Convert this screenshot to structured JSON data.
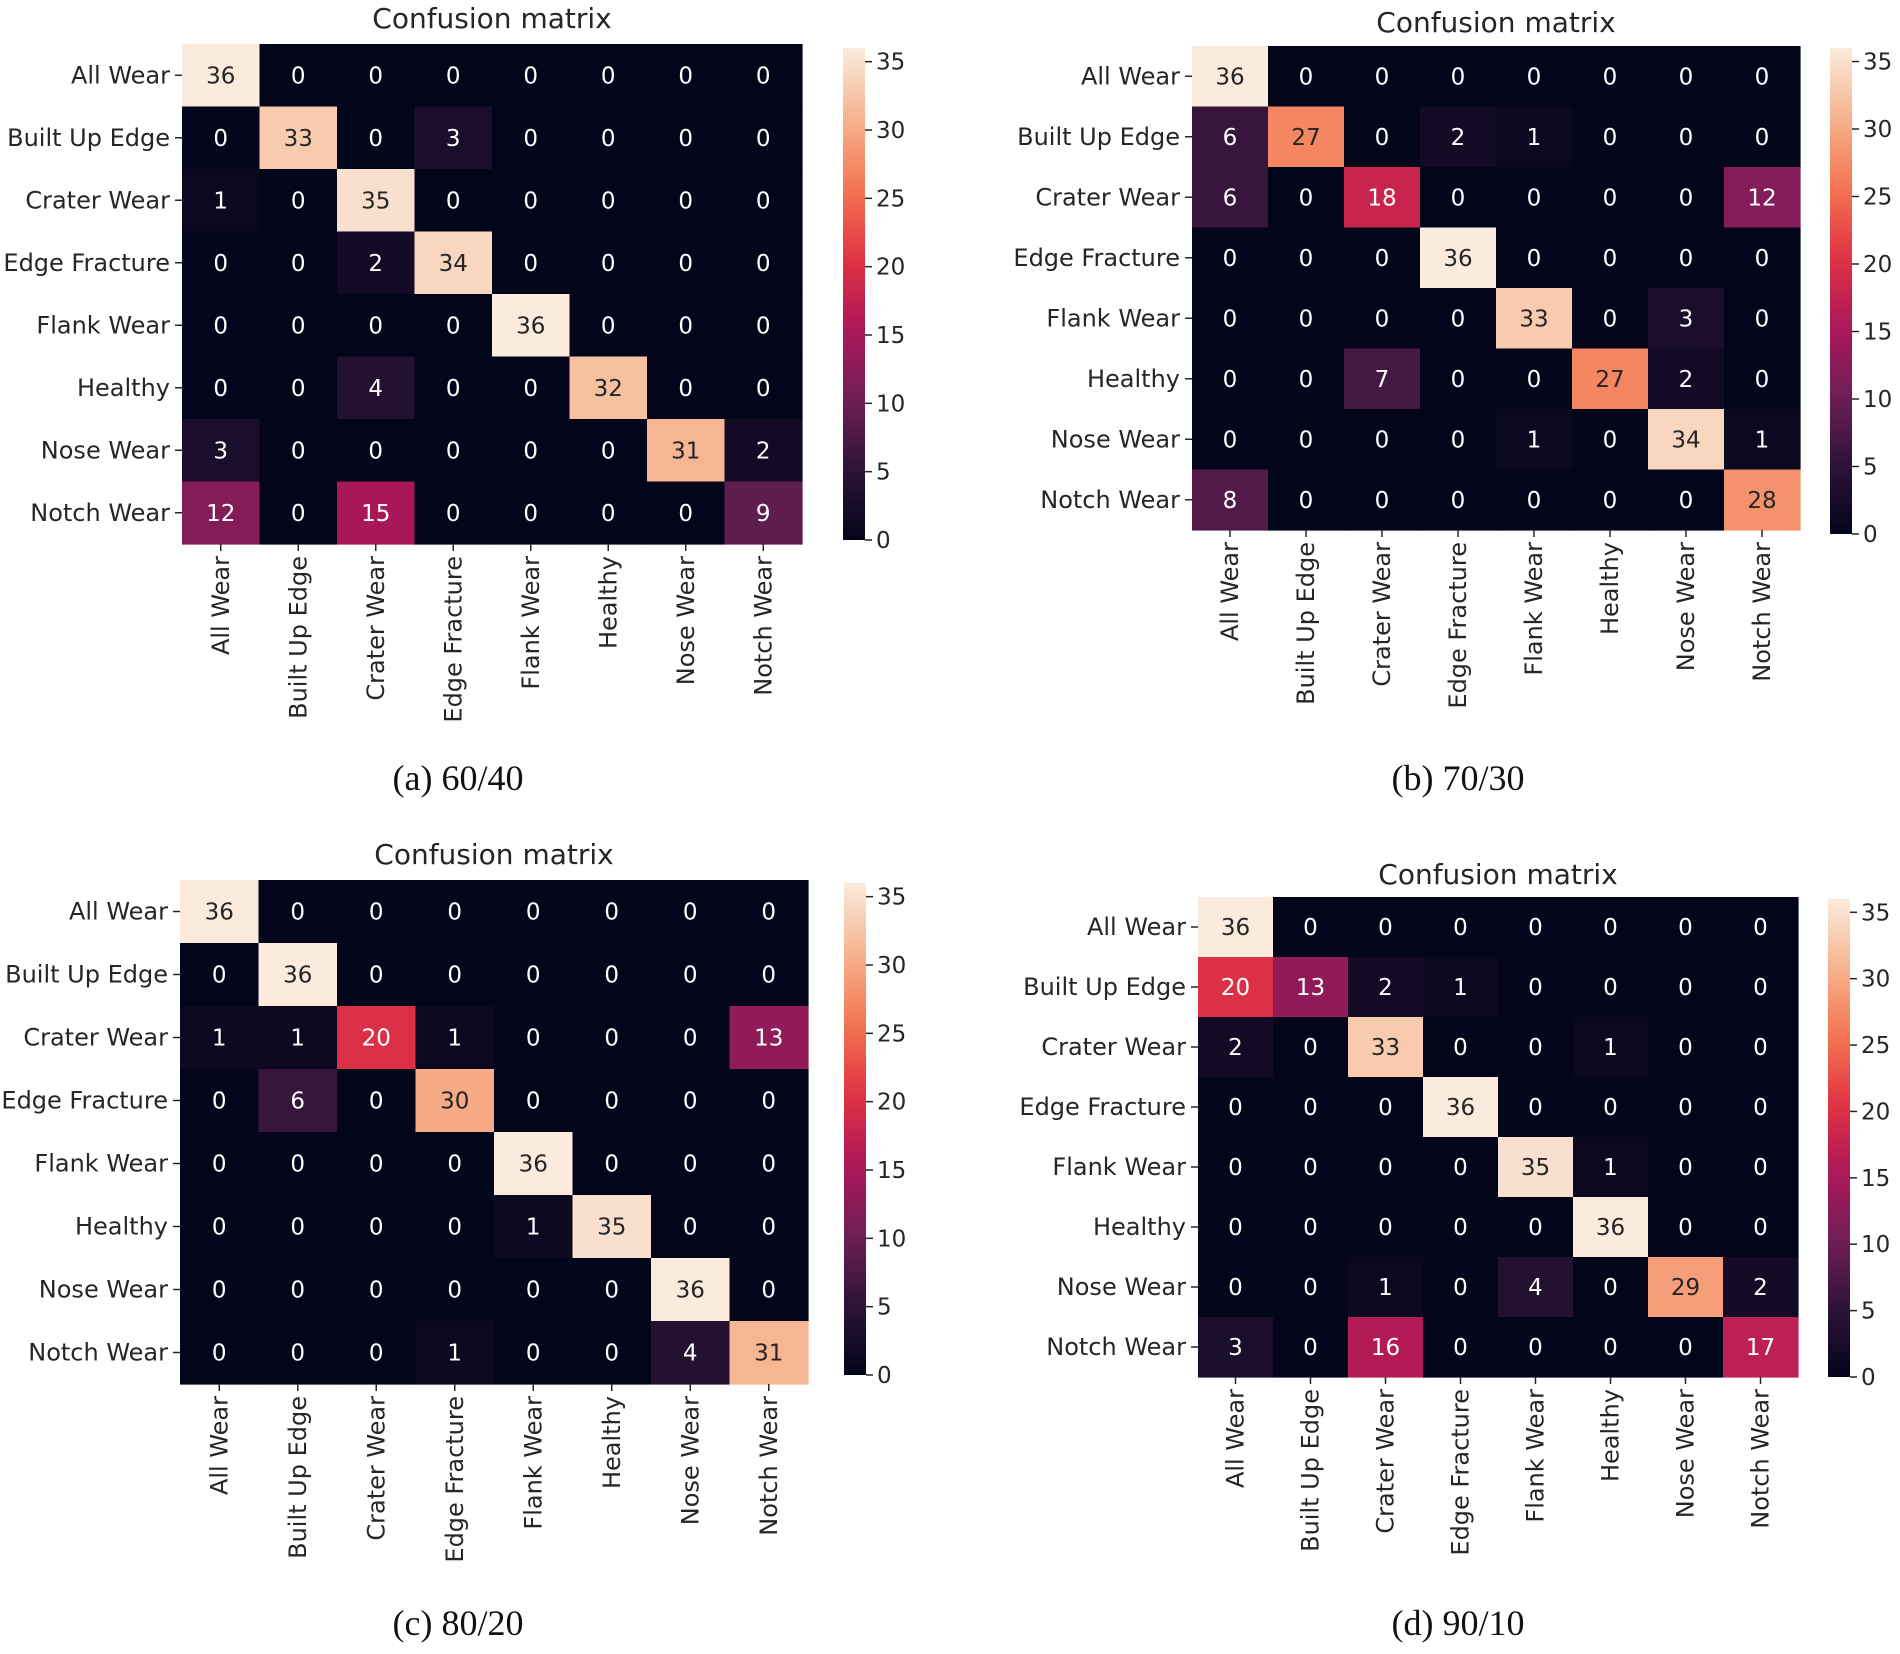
{
  "colormap": [
    "#03051a",
    "#2d1338",
    "#701f57",
    "#ad1759",
    "#e13342",
    "#f37651",
    "#f6b48f",
    "#faebdd"
  ],
  "chart_data": [
    {
      "type": "heatmap",
      "title": "Confusion matrix",
      "caption": "(a) 60/40",
      "row_labels": [
        "All Wear",
        "Built Up Edge",
        "Crater Wear",
        "Edge Fracture",
        "Flank Wear",
        "Healthy",
        "Nose Wear",
        "Notch Wear"
      ],
      "col_labels": [
        "All Wear",
        "Built Up Edge",
        "Crater Wear",
        "Edge Fracture",
        "Flank Wear",
        "Healthy",
        "Nose Wear",
        "Notch Wear"
      ],
      "values": [
        [
          36,
          0,
          0,
          0,
          0,
          0,
          0,
          0
        ],
        [
          0,
          33,
          0,
          3,
          0,
          0,
          0,
          0
        ],
        [
          1,
          0,
          35,
          0,
          0,
          0,
          0,
          0
        ],
        [
          0,
          0,
          2,
          34,
          0,
          0,
          0,
          0
        ],
        [
          0,
          0,
          0,
          0,
          36,
          0,
          0,
          0
        ],
        [
          0,
          0,
          4,
          0,
          0,
          32,
          0,
          0
        ],
        [
          3,
          0,
          0,
          0,
          0,
          0,
          31,
          2
        ],
        [
          12,
          0,
          15,
          0,
          0,
          0,
          0,
          9
        ]
      ],
      "vmin": 0,
      "vmax": 36,
      "colorbar_ticks": [
        0,
        5,
        10,
        15,
        20,
        25,
        30,
        35
      ],
      "colorbar_tick_labels": [
        "0",
        "5",
        "10",
        "15",
        "20",
        "25",
        "30",
        "35"
      ]
    },
    {
      "type": "heatmap",
      "title": "Confusion matrix",
      "caption": "(b) 70/30",
      "row_labels": [
        "All Wear",
        "Built Up Edge",
        "Crater Wear",
        "Edge Fracture",
        "Flank Wear",
        "Healthy",
        "Nose Wear",
        "Notch Wear"
      ],
      "col_labels": [
        "All Wear",
        "Built Up Edge",
        "Crater Wear",
        "Edge Fracture",
        "Flank Wear",
        "Healthy",
        "Nose Wear",
        "Notch Wear"
      ],
      "values": [
        [
          36,
          0,
          0,
          0,
          0,
          0,
          0,
          0
        ],
        [
          6,
          27,
          0,
          2,
          1,
          0,
          0,
          0
        ],
        [
          6,
          0,
          18,
          0,
          0,
          0,
          0,
          12
        ],
        [
          0,
          0,
          0,
          36,
          0,
          0,
          0,
          0
        ],
        [
          0,
          0,
          0,
          0,
          33,
          0,
          3,
          0
        ],
        [
          0,
          0,
          7,
          0,
          0,
          27,
          2,
          0
        ],
        [
          0,
          0,
          0,
          0,
          1,
          0,
          34,
          1
        ],
        [
          8,
          0,
          0,
          0,
          0,
          0,
          0,
          28
        ]
      ],
      "vmin": 0,
      "vmax": 36,
      "colorbar_ticks": [
        0,
        5,
        10,
        15,
        20,
        25,
        30,
        35
      ],
      "colorbar_tick_labels": [
        "0",
        "5",
        "10",
        "15",
        "20",
        "25",
        "30",
        "35"
      ]
    },
    {
      "type": "heatmap",
      "title": "Confusion matrix",
      "caption": "(c) 80/20",
      "row_labels": [
        "All Wear",
        "Built Up Edge",
        "Crater Wear",
        "Edge Fracture",
        "Flank Wear",
        "Healthy",
        "Nose Wear",
        "Notch Wear"
      ],
      "col_labels": [
        "All Wear",
        "Built Up Edge",
        "Crater Wear",
        "Edge Fracture",
        "Flank Wear",
        "Healthy",
        "Nose Wear",
        "Notch Wear"
      ],
      "values": [
        [
          36,
          0,
          0,
          0,
          0,
          0,
          0,
          0
        ],
        [
          0,
          36,
          0,
          0,
          0,
          0,
          0,
          0
        ],
        [
          1,
          1,
          20,
          1,
          0,
          0,
          0,
          13
        ],
        [
          0,
          6,
          0,
          30,
          0,
          0,
          0,
          0
        ],
        [
          0,
          0,
          0,
          0,
          36,
          0,
          0,
          0
        ],
        [
          0,
          0,
          0,
          0,
          1,
          35,
          0,
          0
        ],
        [
          0,
          0,
          0,
          0,
          0,
          0,
          36,
          0
        ],
        [
          0,
          0,
          0,
          1,
          0,
          0,
          4,
          31
        ]
      ],
      "vmin": 0,
      "vmax": 36,
      "colorbar_ticks": [
        0,
        5,
        10,
        15,
        20,
        25,
        30,
        35
      ],
      "colorbar_tick_labels": [
        "0",
        "5",
        "10",
        "15",
        "20",
        "25",
        "30",
        "35"
      ]
    },
    {
      "type": "heatmap",
      "title": "Confusion matrix",
      "caption": "(d) 90/10",
      "row_labels": [
        "All Wear",
        "Built Up Edge",
        "Crater Wear",
        "Edge Fracture",
        "Flank Wear",
        "Healthy",
        "Nose Wear",
        "Notch Wear"
      ],
      "col_labels": [
        "All Wear",
        "Built Up Edge",
        "Crater Wear",
        "Edge Fracture",
        "Flank Wear",
        "Healthy",
        "Nose Wear",
        "Notch Wear"
      ],
      "values": [
        [
          36,
          0,
          0,
          0,
          0,
          0,
          0,
          0
        ],
        [
          20,
          13,
          2,
          1,
          0,
          0,
          0,
          0
        ],
        [
          2,
          0,
          33,
          0,
          0,
          1,
          0,
          0
        ],
        [
          0,
          0,
          0,
          36,
          0,
          0,
          0,
          0
        ],
        [
          0,
          0,
          0,
          0,
          35,
          1,
          0,
          0
        ],
        [
          0,
          0,
          0,
          0,
          0,
          36,
          0,
          0
        ],
        [
          0,
          0,
          1,
          0,
          4,
          0,
          29,
          2
        ],
        [
          3,
          0,
          16,
          0,
          0,
          0,
          0,
          17
        ]
      ],
      "vmin": 0,
      "vmax": 36,
      "colorbar_ticks": [
        0,
        5,
        10,
        15,
        20,
        25,
        30,
        35
      ],
      "colorbar_tick_labels": [
        "0",
        "5",
        "10",
        "15",
        "20",
        "25",
        "30",
        "35"
      ]
    }
  ]
}
